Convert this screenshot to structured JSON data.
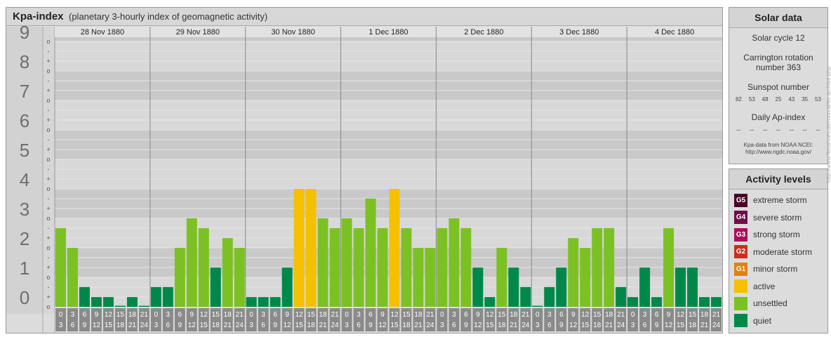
{
  "header": {
    "title": "Kpa-index",
    "subtitle": "(planetary 3-hourly index of geomagnetic activity)"
  },
  "solar": {
    "title": "Solar data",
    "cycle": "Solar cycle 12",
    "carrington": "Carrington rotation number 363",
    "sunspot_label": "Sunspot number",
    "sunspots": [
      "82",
      "53",
      "48",
      "25",
      "43",
      "35",
      "53"
    ],
    "ap_label": "Daily Ap-index",
    "ap_values": [
      "--",
      "--",
      "--",
      "--",
      "--",
      "--",
      "--"
    ],
    "credit_line1": "Kpa-data from NOAA NCEI:",
    "credit_line2": "http://www.ngdc.noaa.gov/"
  },
  "activity": {
    "title": "Activity levels",
    "levels": [
      {
        "badge": "G5",
        "label": "extreme storm",
        "color": "#4a0029"
      },
      {
        "badge": "G4",
        "label": "severe storm",
        "color": "#6e0f47"
      },
      {
        "badge": "G3",
        "label": "strong storm",
        "color": "#a8105a"
      },
      {
        "badge": "G2",
        "label": "moderate storm",
        "color": "#c8301c"
      },
      {
        "badge": "G1",
        "label": "minor storm",
        "color": "#e67e10"
      },
      {
        "badge": "",
        "label": "active",
        "color": "#f5c000"
      },
      {
        "badge": "",
        "label": "unsettled",
        "color": "#7cc123"
      },
      {
        "badge": "",
        "label": "quiet",
        "color": "#00884a"
      }
    ]
  },
  "vertical_credit": "http://www.fleushuev.de/ruurcal/eo archive.php",
  "chart_data": {
    "type": "bar",
    "y_ticks": [
      "0",
      "1",
      "2",
      "3",
      "4",
      "5",
      "6",
      "7",
      "8",
      "9"
    ],
    "sub_tick_labels": [
      "+",
      "o",
      "-"
    ],
    "ylim": [
      0,
      9.33
    ],
    "days": [
      "28 Nov 1880",
      "29 Nov 1880",
      "30 Nov 1880",
      "1 Dec 1880",
      "2 Dec 1880",
      "3 Dec 1880",
      "4 Dec 1880"
    ],
    "interval_labels": [
      [
        "0",
        "3"
      ],
      [
        "3",
        "6"
      ],
      [
        "6",
        "9"
      ],
      [
        "9",
        "12"
      ],
      [
        "12",
        "15"
      ],
      [
        "15",
        "18"
      ],
      [
        "18",
        "21"
      ],
      [
        "21",
        "24"
      ]
    ],
    "colors": {
      "quiet": "#00884a",
      "unsettled": "#7cc123",
      "active": "#f5c000"
    },
    "values": [
      [
        2.67,
        2.0,
        0.67,
        0.33,
        0.33,
        0.0,
        0.33,
        0.0
      ],
      [
        0.67,
        0.67,
        2.0,
        3.0,
        2.67,
        1.33,
        2.33,
        2.0
      ],
      [
        0.33,
        0.33,
        0.33,
        1.33,
        4.0,
        4.0,
        3.0,
        2.67
      ],
      [
        3.0,
        2.67,
        3.67,
        2.67,
        4.0,
        2.67,
        2.0,
        2.0
      ],
      [
        2.67,
        3.0,
        2.67,
        1.33,
        0.33,
        2.0,
        1.33,
        0.67
      ],
      [
        0.0,
        0.67,
        1.33,
        2.33,
        2.0,
        2.67,
        2.67,
        0.67
      ],
      [
        0.33,
        1.33,
        0.33,
        2.67,
        1.33,
        1.33,
        0.33,
        0.33
      ]
    ]
  }
}
